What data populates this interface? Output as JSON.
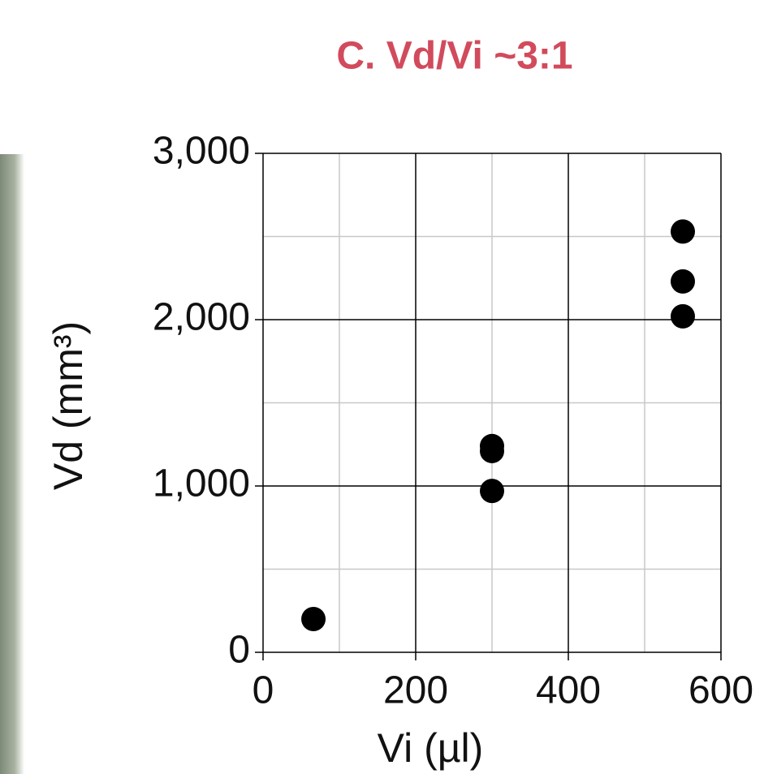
{
  "chart_data": {
    "type": "scatter",
    "title": "C. Vd/Vi ~3:1",
    "xlabel": "Vi (µl)",
    "ylabel": "Vd (mm³)",
    "x": [
      66,
      300,
      300,
      300,
      550,
      550,
      550
    ],
    "values": [
      200,
      1240,
      1210,
      970,
      2530,
      2230,
      2020
    ],
    "color": "#000000",
    "xlim": [
      0,
      600
    ],
    "xticks": [
      0,
      200,
      400,
      600
    ],
    "ylim": [
      0,
      3000
    ],
    "yticks": [
      0,
      {
        "value": 1000,
        "label": "1,000"
      },
      {
        "value": 2000,
        "label": "2,000"
      },
      {
        "value": 3000,
        "label": "3,000"
      }
    ],
    "x_minor_ticks": [
      100,
      300,
      500
    ],
    "y_minor_ticks": [
      500,
      1500,
      2500
    ],
    "grid": true
  }
}
